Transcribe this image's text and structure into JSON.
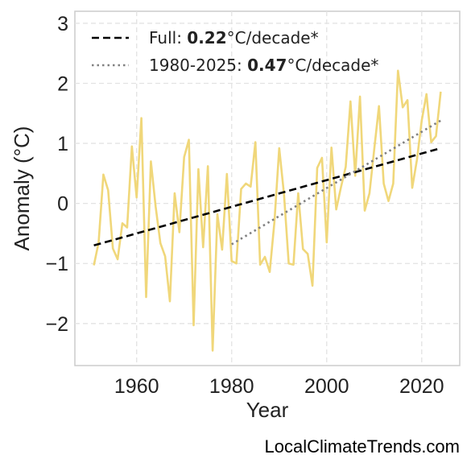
{
  "chart_data": {
    "type": "line",
    "xlabel": "Year",
    "ylabel": "Anomaly (°C)",
    "xlim": [
      1947,
      2028
    ],
    "ylim": [
      -2.7,
      3.2
    ],
    "x_ticks": [
      1960,
      1980,
      2000,
      2020
    ],
    "y_ticks": [
      3,
      2,
      1,
      0,
      -1,
      -2
    ],
    "y_tick_labels": [
      "3",
      "2",
      "1",
      "0",
      "−1",
      "−2"
    ],
    "grid": true,
    "legend_position": "top-left",
    "series": [
      {
        "kind": "data",
        "color": "#f0d77a",
        "x": [
          1951,
          1952,
          1953,
          1954,
          1955,
          1956,
          1957,
          1958,
          1959,
          1960,
          1961,
          1962,
          1963,
          1964,
          1965,
          1966,
          1967,
          1968,
          1969,
          1970,
          1971,
          1972,
          1973,
          1974,
          1975,
          1976,
          1977,
          1978,
          1979,
          1980,
          1981,
          1982,
          1983,
          1984,
          1985,
          1986,
          1987,
          1988,
          1989,
          1990,
          1991,
          1992,
          1993,
          1994,
          1995,
          1996,
          1997,
          1998,
          1999,
          2000,
          2001,
          2002,
          2003,
          2004,
          2005,
          2006,
          2007,
          2008,
          2009,
          2010,
          2011,
          2012,
          2013,
          2014,
          2015,
          2016,
          2017,
          2018,
          2019,
          2020,
          2021,
          2022,
          2023,
          2024
        ],
        "y": [
          -1.03,
          -0.65,
          0.48,
          0.22,
          -0.75,
          -0.93,
          -0.33,
          -0.4,
          0.95,
          0.1,
          1.42,
          -1.56,
          0.7,
          -0.05,
          -0.66,
          -0.88,
          -1.63,
          0.17,
          -0.48,
          0.77,
          1.06,
          -2.03,
          0.57,
          -0.73,
          0.62,
          -2.45,
          -0.18,
          -0.77,
          0.49,
          -0.96,
          -1.0,
          0.24,
          0.33,
          0.28,
          1.02,
          -1.02,
          -0.89,
          -1.14,
          -0.3,
          0.92,
          0.16,
          -1.0,
          -1.02,
          0.17,
          -0.76,
          -0.84,
          -1.37,
          0.59,
          0.76,
          -0.65,
          0.93,
          -0.1,
          0.27,
          0.61,
          1.7,
          0.46,
          1.78,
          -0.12,
          0.17,
          0.9,
          1.62,
          0.33,
          0.04,
          0.33,
          2.21,
          1.6,
          1.72,
          0.26,
          0.73,
          1.38,
          1.82,
          1.02,
          1.12,
          1.86
        ]
      },
      {
        "kind": "trend",
        "style": "dashed",
        "color": "#000000",
        "x": [
          1951,
          2024
        ],
        "y": [
          -0.7,
          0.92
        ]
      },
      {
        "kind": "trend",
        "style": "dotted",
        "color": "#808080",
        "x": [
          1980,
          2024
        ],
        "y": [
          -0.68,
          1.38
        ]
      }
    ],
    "legend": [
      {
        "prefix": "Full: ",
        "value": "0.22",
        "suffix": "°C/decade*",
        "style": "dashed",
        "color": "#000000"
      },
      {
        "prefix": "1980-2025: ",
        "value": "0.47",
        "suffix": "°C/decade*",
        "style": "dotted",
        "color": "#808080"
      }
    ]
  },
  "watermark": "LocalClimateTrends.com"
}
